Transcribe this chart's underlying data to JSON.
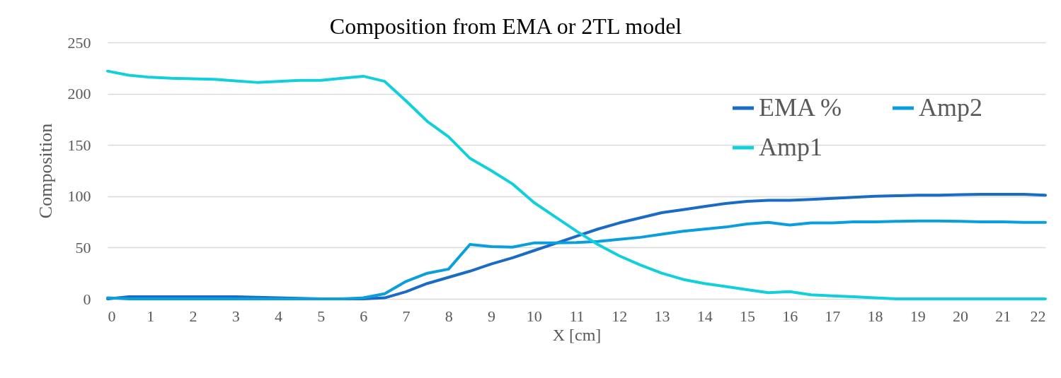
{
  "chart_data": {
    "type": "line",
    "title": "Composition from EMA or 2TL model",
    "xlabel": "X [cm]",
    "ylabel": "Composition",
    "x": [
      0,
      0.5,
      1,
      1.5,
      2,
      2.5,
      3,
      3.5,
      4,
      4.5,
      5,
      5.5,
      6,
      6.5,
      7,
      7.5,
      8,
      8.5,
      9,
      9.5,
      10,
      10.5,
      11,
      11.5,
      12,
      12.5,
      13,
      13.5,
      14,
      14.5,
      15,
      15.5,
      16,
      16.5,
      17,
      17.5,
      18,
      18.5,
      19,
      19.5,
      20,
      20.5,
      21,
      21.5,
      22
    ],
    "series": [
      {
        "name": "EMA %",
        "color": "#1a6bc6",
        "values": [
          0,
          2,
          2,
          2,
          2,
          2,
          2,
          1.5,
          1,
          0.5,
          0,
          0,
          0,
          1,
          7,
          15,
          21,
          27,
          34,
          40,
          47,
          54,
          61,
          68,
          74,
          79,
          84,
          87,
          90,
          93,
          95,
          96,
          96,
          97,
          98,
          99,
          100,
          100.5,
          101,
          101,
          101.5,
          102,
          102,
          102,
          101
        ]
      },
      {
        "name": "Amp2",
        "color": "#0a9fdc",
        "values": [
          1,
          0,
          0,
          0,
          0,
          0,
          0,
          0,
          0,
          0,
          0,
          0,
          1,
          5,
          17,
          25,
          29,
          53,
          51,
          50.5,
          54.5,
          54.5,
          55,
          56,
          58,
          60,
          63,
          66,
          68,
          70,
          73,
          74.5,
          72,
          74,
          74,
          75,
          75,
          75.5,
          76,
          76,
          75.5,
          75,
          75,
          74.5,
          74.5
        ]
      },
      {
        "name": "Amp1",
        "color": "#12cfdc",
        "values": [
          222,
          218,
          216,
          215,
          214.5,
          214,
          212.5,
          211,
          212,
          213,
          213,
          215,
          217,
          212,
          193,
          173,
          158,
          137,
          125,
          112,
          94,
          80,
          66,
          53,
          42,
          33,
          25,
          19,
          15,
          12,
          9,
          6,
          7,
          4,
          3,
          2,
          1,
          0,
          0,
          0,
          0,
          0,
          0,
          0,
          0
        ]
      }
    ],
    "xlim": [
      0,
      22
    ],
    "xticks": [
      0,
      1,
      2,
      3,
      4,
      5,
      6,
      7,
      8,
      9,
      10,
      11,
      12,
      13,
      14,
      15,
      16,
      17,
      18,
      19,
      20,
      21,
      22
    ],
    "ylim": [
      0,
      250
    ],
    "yticks": [
      0,
      50,
      100,
      150,
      200,
      250
    ],
    "grid": "y",
    "legend": "top right",
    "marker": "none",
    "line_style": "solid"
  }
}
